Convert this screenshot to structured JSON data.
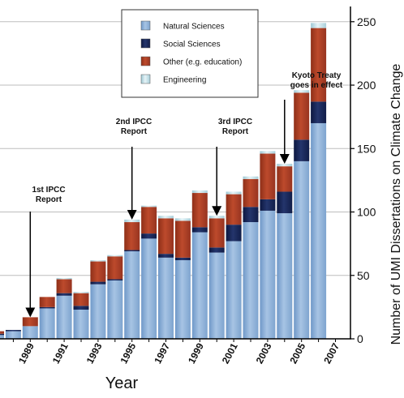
{
  "chart_data": {
    "type": "bar",
    "stacked": true,
    "categories": [
      "1987",
      "1988",
      "1989",
      "1990",
      "1991",
      "1992",
      "1993",
      "1994",
      "1995",
      "1996",
      "1997",
      "1998",
      "1999",
      "2000",
      "2001",
      "2002",
      "2003",
      "2004",
      "2005",
      "2006",
      "2007",
      "2008"
    ],
    "x_tick_labels": [
      "1989",
      "1991",
      "1993",
      "1995",
      "1997",
      "1999",
      "2001",
      "2003",
      "2005",
      "2007"
    ],
    "series": [
      {
        "name": "Natural Sciences",
        "color": "#88add6",
        "values": [
          3,
          6,
          10,
          24,
          34,
          23,
          43,
          46,
          69,
          79,
          64,
          62,
          84,
          68,
          77,
          92,
          101,
          99,
          140,
          170,
          0,
          0
        ]
      },
      {
        "name": "Social Sciences",
        "color": "#16234f",
        "values": [
          1,
          1,
          0,
          1,
          2,
          3,
          2,
          1,
          1,
          4,
          3,
          2,
          4,
          4,
          13,
          12,
          9,
          17,
          17,
          17,
          0,
          0
        ]
      },
      {
        "name": "Other (e.g. education)",
        "color": "#a83c22",
        "values": [
          2,
          0,
          7,
          8,
          11,
          10,
          16,
          18,
          22,
          21,
          28,
          29,
          27,
          23,
          24,
          22,
          36,
          20,
          37,
          58,
          0,
          0
        ]
      },
      {
        "name": "Engineering",
        "color": "#cde3ea",
        "values": [
          0,
          0,
          0,
          0,
          1,
          1,
          1,
          1,
          2,
          1,
          2,
          2,
          2,
          2,
          2,
          2,
          2,
          2,
          2,
          4,
          0,
          0
        ]
      }
    ],
    "title": "",
    "xlabel": "Year",
    "ylabel": "Number of UMI Dissertations on Climate Change",
    "ylim": [
      0,
      262
    ],
    "yticks": [
      0,
      50,
      100,
      150,
      200,
      250
    ],
    "grid": "horizontal",
    "legend_position": "top-center",
    "annotations": [
      {
        "lines": [
          "1st IPCC",
          "Report"
        ],
        "category": "1989"
      },
      {
        "lines": [
          "2nd IPCC",
          "Report"
        ],
        "category": "1995"
      },
      {
        "lines": [
          "3rd IPCC",
          "Report"
        ],
        "category": "2000"
      },
      {
        "lines": [
          "Kyoto Treaty",
          "goes in effect"
        ],
        "category": "2004"
      }
    ]
  }
}
